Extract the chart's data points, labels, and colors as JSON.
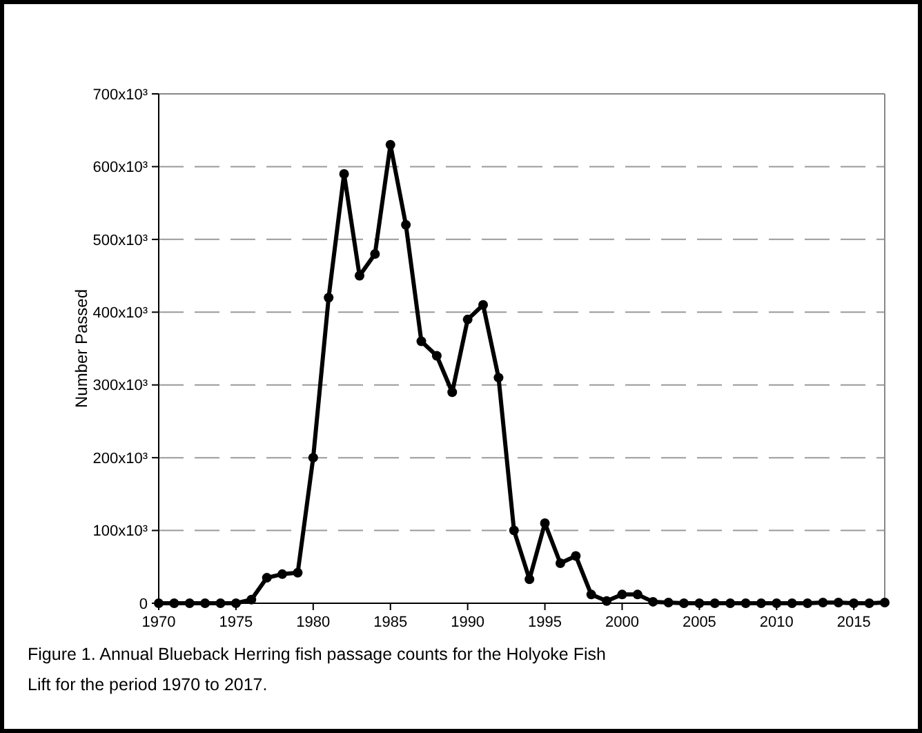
{
  "chart_data": {
    "type": "line",
    "ylabel": "Number Passed",
    "x": [
      1970,
      1971,
      1972,
      1973,
      1974,
      1975,
      1976,
      1977,
      1978,
      1979,
      1980,
      1981,
      1982,
      1983,
      1984,
      1985,
      1986,
      1987,
      1988,
      1989,
      1990,
      1991,
      1992,
      1993,
      1994,
      1995,
      1996,
      1997,
      1998,
      1999,
      2000,
      2001,
      2002,
      2003,
      2004,
      2005,
      2006,
      2007,
      2008,
      2009,
      2010,
      2011,
      2012,
      2013,
      2014,
      2015,
      2016,
      2017
    ],
    "series": [
      {
        "color": "#000000",
        "values": [
          0,
          0,
          0,
          0,
          0,
          0,
          5000,
          35000,
          40000,
          42000,
          200000,
          420000,
          590000,
          450000,
          480000,
          630000,
          520000,
          360000,
          340000,
          290000,
          390000,
          410000,
          310000,
          100000,
          33000,
          110000,
          55000,
          65000,
          12000,
          3000,
          12000,
          12000,
          2000,
          1000,
          0,
          0,
          0,
          0,
          0,
          0,
          0,
          0,
          0,
          1000,
          1000,
          0,
          0,
          1000
        ]
      }
    ],
    "xlim": [
      1970,
      2017
    ],
    "xticks": [
      1970,
      1975,
      1980,
      1985,
      1990,
      1995,
      2000,
      2005,
      2010,
      2015
    ],
    "ylim": [
      0,
      700000
    ],
    "yticks": [
      0,
      {
        "value": 100000,
        "label": "100x10³"
      },
      {
        "value": 200000,
        "label": "200x10³"
      },
      {
        "value": 300000,
        "label": "300x10³"
      },
      {
        "value": 400000,
        "label": "400x10³"
      },
      {
        "value": 500000,
        "label": "500x10³"
      },
      {
        "value": 600000,
        "label": "600x10³"
      },
      {
        "value": 700000,
        "label": "700x10³"
      }
    ],
    "grid": "y",
    "marker": "circle",
    "line_style": "solid",
    "annotations": [
      "Figure 1.  Annual Blueback Herring fish passage counts for the Holyoke Fish Lift for the period 1970 to 2017."
    ]
  }
}
